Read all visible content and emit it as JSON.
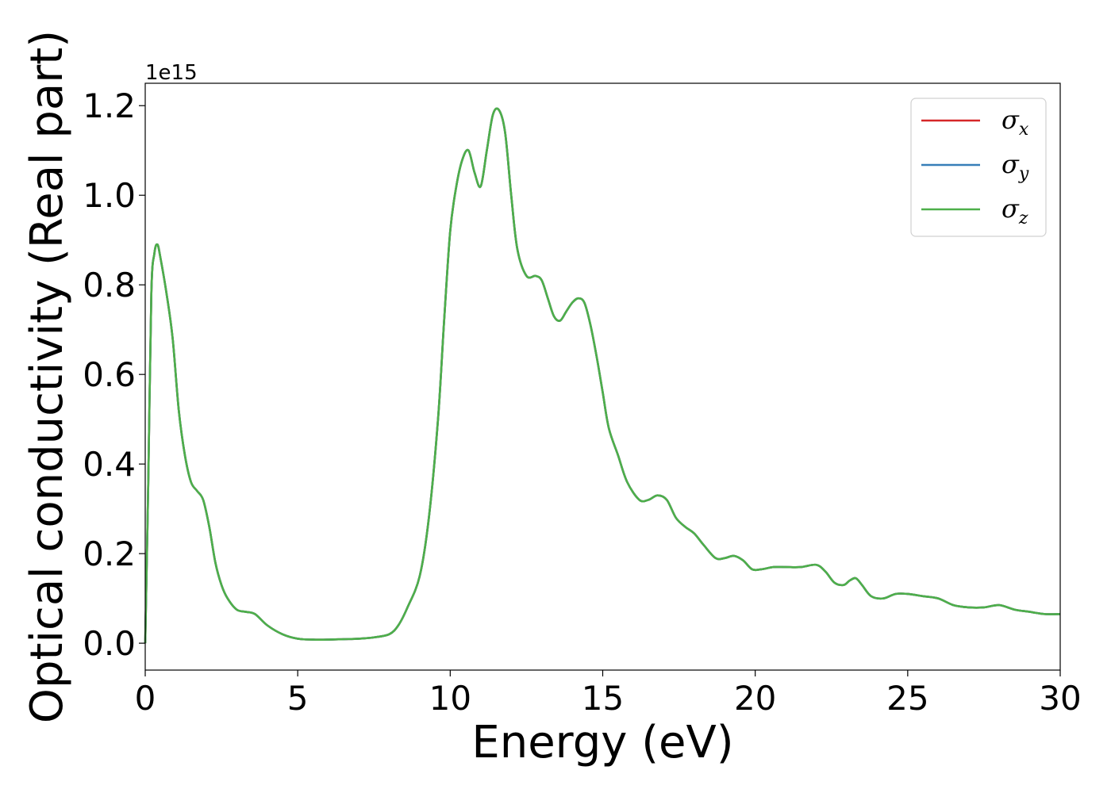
{
  "chart_data": {
    "type": "line",
    "xlabel": "Energy (eV)",
    "ylabel": "Optical conductivity (Real part)",
    "y_offset_label": "1e15",
    "xlim": [
      0,
      30
    ],
    "ylim": [
      -0.06,
      1.25
    ],
    "y_scale_factor": 1000000000000000.0,
    "x_ticks": [
      0,
      5,
      10,
      15,
      20,
      25,
      30
    ],
    "x_tick_labels": [
      "0",
      "5",
      "10",
      "15",
      "20",
      "25",
      "30"
    ],
    "y_ticks": [
      0.0,
      0.2,
      0.4,
      0.6,
      0.8,
      1.0,
      1.2
    ],
    "y_tick_labels": [
      "0.0",
      "0.2",
      "0.4",
      "0.6",
      "0.8",
      "1.0",
      "1.2"
    ],
    "grid": false,
    "legend_position": "top-right",
    "x": [
      0,
      0.1,
      0.2,
      0.3,
      0.4,
      0.5,
      0.7,
      0.9,
      1.1,
      1.3,
      1.5,
      1.7,
      1.9,
      2.1,
      2.3,
      2.5,
      2.7,
      3.0,
      3.3,
      3.6,
      4.0,
      4.5,
      5.0,
      5.5,
      6.0,
      6.5,
      7.0,
      7.5,
      8.0,
      8.3,
      8.6,
      9.0,
      9.3,
      9.6,
      9.8,
      10.0,
      10.2,
      10.4,
      10.6,
      10.8,
      11.0,
      11.2,
      11.4,
      11.6,
      11.8,
      12.0,
      12.2,
      12.5,
      12.8,
      13.0,
      13.2,
      13.4,
      13.6,
      13.8,
      14.0,
      14.2,
      14.4,
      14.6,
      14.8,
      15.0,
      15.2,
      15.5,
      15.8,
      16.2,
      16.5,
      16.8,
      17.1,
      17.4,
      17.7,
      18.0,
      18.3,
      18.7,
      19.0,
      19.3,
      19.6,
      19.9,
      20.2,
      20.6,
      21.0,
      21.5,
      22.0,
      22.3,
      22.6,
      22.9,
      23.1,
      23.3,
      23.5,
      23.8,
      24.2,
      24.6,
      25.0,
      25.5,
      26.0,
      26.5,
      27.0,
      27.5,
      28.0,
      28.5,
      29.0,
      29.5,
      30.0
    ],
    "series": [
      {
        "name": "σx",
        "label_base": "σ",
        "label_sub": "x",
        "color": "#d62728"
      },
      {
        "name": "σy",
        "label_base": "σ",
        "label_sub": "y",
        "color": "#377eb8"
      },
      {
        "name": "σz",
        "label_base": "σ",
        "label_sub": "z",
        "color": "#4daf4a"
      }
    ],
    "values": [
      0.0,
      0.36,
      0.78,
      0.87,
      0.89,
      0.86,
      0.78,
      0.68,
      0.52,
      0.42,
      0.36,
      0.34,
      0.32,
      0.26,
      0.18,
      0.13,
      0.1,
      0.075,
      0.07,
      0.065,
      0.04,
      0.02,
      0.01,
      0.008,
      0.008,
      0.009,
      0.01,
      0.013,
      0.02,
      0.04,
      0.08,
      0.15,
      0.28,
      0.5,
      0.72,
      0.92,
      1.02,
      1.08,
      1.1,
      1.05,
      1.02,
      1.1,
      1.18,
      1.19,
      1.14,
      1.0,
      0.88,
      0.82,
      0.82,
      0.81,
      0.77,
      0.73,
      0.72,
      0.74,
      0.76,
      0.77,
      0.76,
      0.71,
      0.64,
      0.56,
      0.48,
      0.42,
      0.36,
      0.32,
      0.32,
      0.33,
      0.32,
      0.28,
      0.26,
      0.245,
      0.22,
      0.19,
      0.19,
      0.195,
      0.185,
      0.165,
      0.165,
      0.17,
      0.17,
      0.17,
      0.175,
      0.16,
      0.135,
      0.13,
      0.14,
      0.145,
      0.13,
      0.105,
      0.1,
      0.11,
      0.11,
      0.105,
      0.1,
      0.085,
      0.08,
      0.08,
      0.085,
      0.075,
      0.07,
      0.065,
      0.065
    ]
  }
}
